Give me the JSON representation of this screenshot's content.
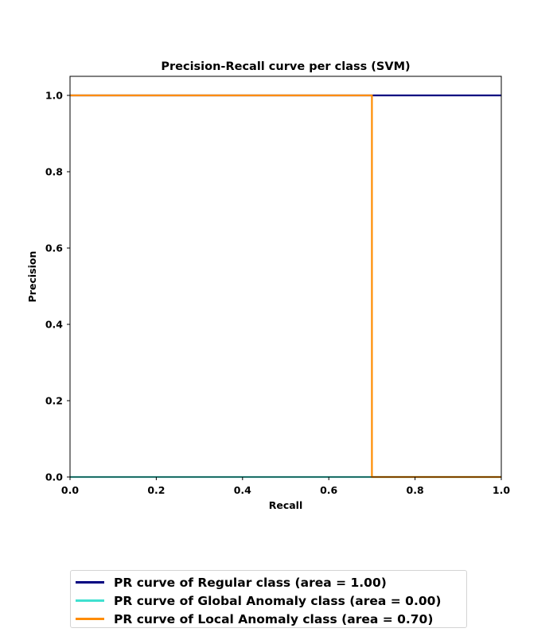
{
  "chart_data": {
    "type": "line",
    "title": "Precision-Recall curve per class (SVM)",
    "xlabel": "Recall",
    "ylabel": "Precision",
    "xlim": [
      0.0,
      1.0
    ],
    "ylim": [
      0.0,
      1.05
    ],
    "x_ticks": [
      "0.0",
      "0.2",
      "0.4",
      "0.6",
      "0.8",
      "1.0"
    ],
    "y_ticks": [
      "0.0",
      "0.2",
      "0.4",
      "0.6",
      "0.8",
      "1.0"
    ],
    "grid": false,
    "legend_position": "below",
    "series": [
      {
        "name": "PR curve of Regular class (area = 1.00)",
        "color": "#000080",
        "recall": [
          1.0,
          0.0
        ],
        "precision": [
          1.0,
          1.0
        ]
      },
      {
        "name": "PR curve of Global Anomaly class (area = 0.00)",
        "color": "#40e0d0",
        "recall": [
          0.0,
          1.0
        ],
        "precision": [
          0.0,
          0.0
        ]
      },
      {
        "name": "PR curve of Local Anomaly class (area = 0.70)",
        "color": "#ff8c00",
        "recall": [
          1.0,
          0.7,
          0.7,
          0.0
        ],
        "precision": [
          0.0,
          0.0,
          1.0,
          1.0
        ]
      }
    ]
  }
}
